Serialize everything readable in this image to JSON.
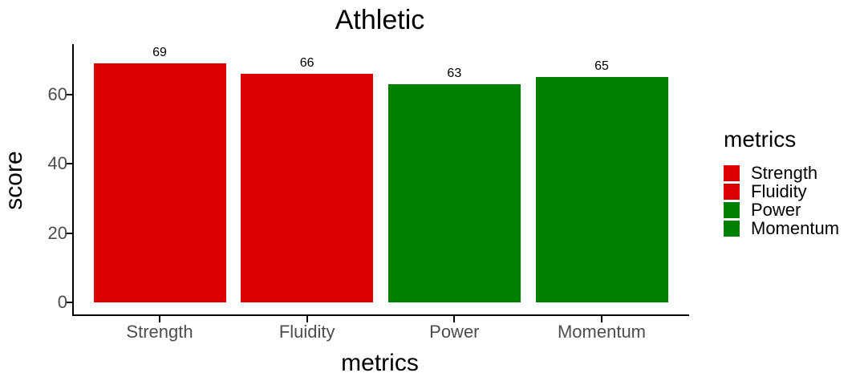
{
  "chart_data": {
    "type": "bar",
    "title": "Athletic",
    "xlabel": "metrics",
    "ylabel": "score",
    "categories": [
      "Strength",
      "Fluidity",
      "Power",
      "Momentum"
    ],
    "values": [
      69,
      66,
      63,
      65
    ],
    "bar_labels": [
      "69",
      "66",
      "63",
      "65"
    ],
    "bar_colors": [
      "#dd0000",
      "#dd0000",
      "#008000",
      "#008000"
    ],
    "yticks": [
      0,
      20,
      40,
      60
    ],
    "ylim": [
      0,
      75
    ],
    "grid": false,
    "background": "#ffffff",
    "legend": {
      "title": "metrics",
      "position": "right",
      "entries": [
        {
          "label": "Strength",
          "color": "#dd0000"
        },
        {
          "label": "Fluidity",
          "color": "#dd0000"
        },
        {
          "label": "Power",
          "color": "#008000"
        },
        {
          "label": "Momentum",
          "color": "#008000"
        }
      ]
    }
  },
  "colors": {
    "bar_red": "#dd0000",
    "bar_green": "#008000",
    "axis_text": "#4d4d4d",
    "axis_line": "#000000",
    "title_text": "#000000"
  }
}
